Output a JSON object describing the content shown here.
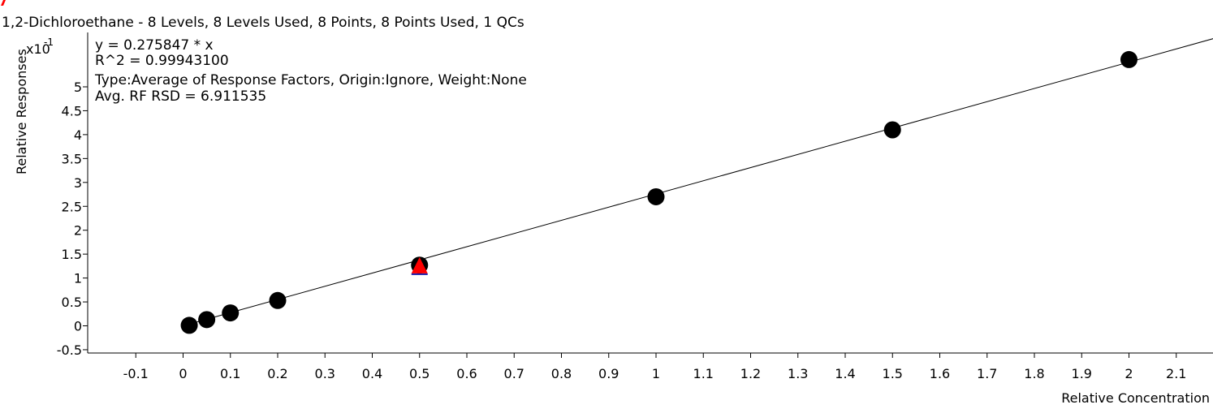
{
  "chart_data": {
    "type": "scatter",
    "title": "1,2-Dichloroethane - 8 Levels, 8 Levels Used, 8 Points, 8 Points Used, 1 QCs",
    "xlabel": "Relative Concentration",
    "ylabel": "Relative Responses",
    "y_multiplier_base": "x10",
    "y_multiplier_exp": "-1",
    "annotations": [
      "y = 0.275847 * x",
      "R^2 = 0.99943100",
      "Type:Average of Response Factors, Origin:Ignore, Weight:None",
      "Avg. RF RSD = 6.911535"
    ],
    "xlim": [
      -0.2,
      2.18
    ],
    "ylim": [
      -0.6,
      6.2
    ],
    "x_ticks": [
      -0.1,
      0,
      0.1,
      0.2,
      0.3,
      0.4,
      0.5,
      0.6,
      0.7,
      0.8,
      0.9,
      1,
      1.1,
      1.2,
      1.3,
      1.4,
      1.5,
      1.6,
      1.7,
      1.8,
      1.9,
      2,
      2.1
    ],
    "x_tick_labels": [
      "-0.1",
      "0",
      "0.1",
      "0.2",
      "0.3",
      "0.4",
      "0.5",
      "0.6",
      "0.7",
      "0.8",
      "0.9",
      "1",
      "1.1",
      "1.2",
      "1.3",
      "1.4",
      "1.5",
      "1.6",
      "1.7",
      "1.8",
      "1.9",
      "2",
      "2.1"
    ],
    "y_ticks": [
      -0.5,
      0,
      0.5,
      1,
      1.5,
      2,
      2.5,
      3,
      3.5,
      4,
      4.5,
      5
    ],
    "y_tick_labels": [
      "-0.5",
      "0",
      "0.5",
      "1",
      "1.5",
      "2",
      "2.5",
      "3",
      "3.5",
      "4",
      "4.5",
      "5"
    ],
    "fit": {
      "slope": 0.275847,
      "intercept": 0,
      "units_scale": 0.1
    },
    "series": [
      {
        "marker": "circle",
        "color": "#000000",
        "x": [
          0.013,
          0.05,
          0.1,
          0.2,
          0.5,
          1,
          1.5,
          2
        ],
        "y": [
          0.01,
          0.13,
          0.27,
          0.53,
          1.27,
          2.7,
          4.1,
          5.57
        ]
      },
      {
        "marker": "triangle",
        "color": "#ff0000",
        "outline": "#1a1aa8",
        "x": [
          0.5
        ],
        "y": [
          1.25
        ]
      }
    ],
    "grid": false,
    "legend": "none"
  },
  "colors": {
    "axis": "#000000",
    "fit_line": "#000000",
    "corner_mark": "#ff0000"
  }
}
